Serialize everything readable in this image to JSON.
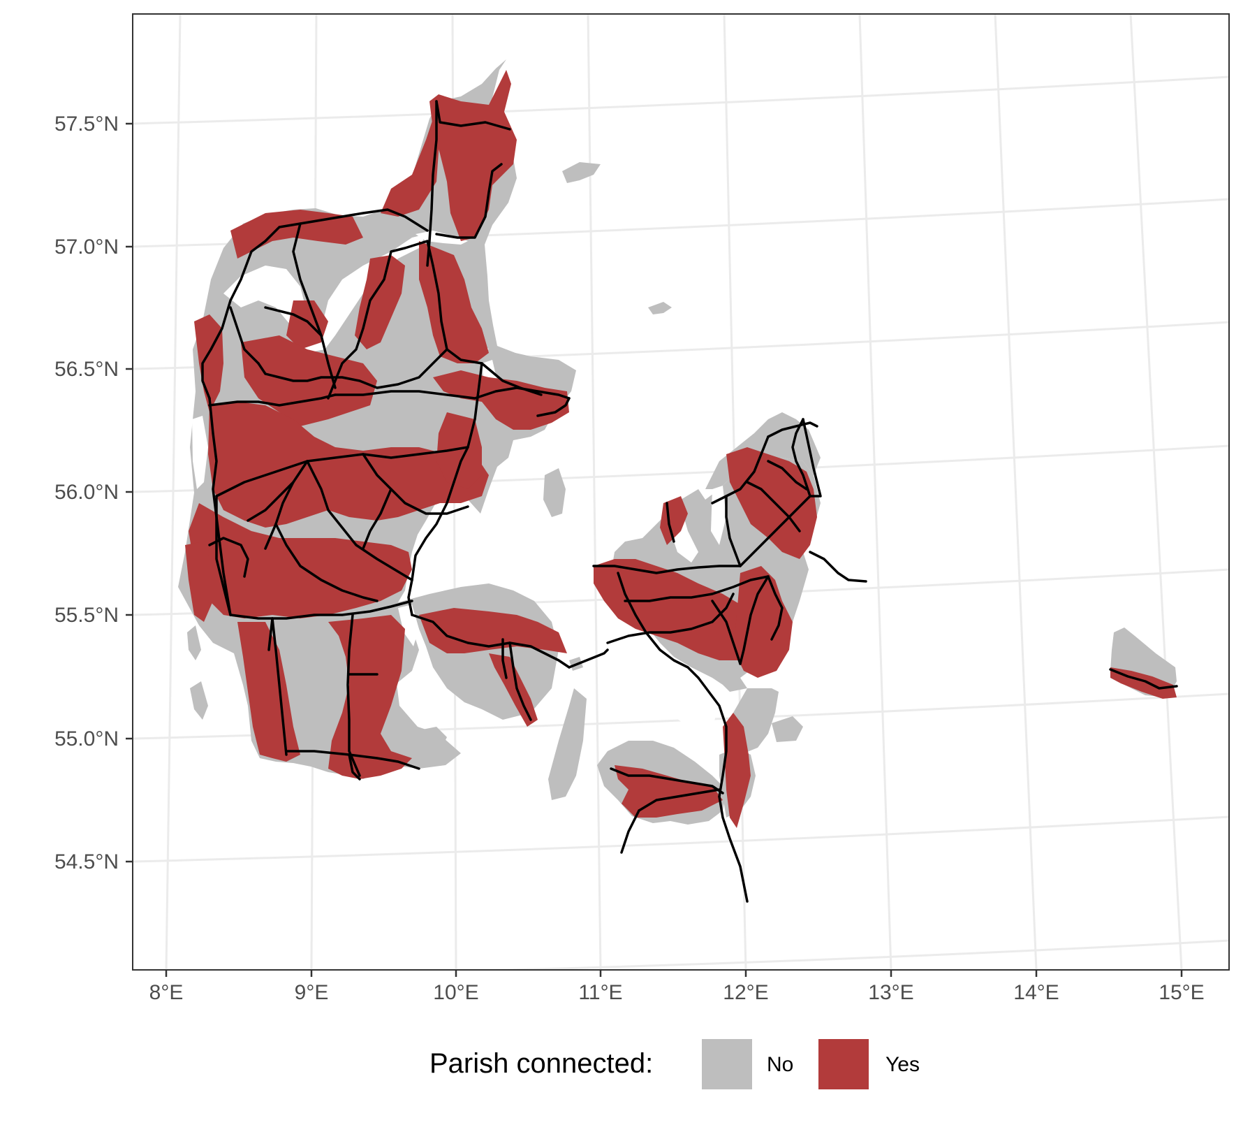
{
  "map": {
    "projection": "conic, graticule curved",
    "background": "#ffffff",
    "grid_color": "#ebebeb",
    "panel_border_color": "#333333",
    "axes": {
      "lon_ticks": [
        "8°E",
        "9°E",
        "10°E",
        "11°E",
        "12°E",
        "13°E",
        "14°E",
        "15°E"
      ],
      "lat_ticks": [
        "57.5°N",
        "57.0°N",
        "56.5°N",
        "56.0°N",
        "55.5°N",
        "55.0°N",
        "54.5°N"
      ]
    },
    "colors": {
      "not_connected": "#bebebe",
      "connected": "#b23b3b",
      "rail": "#000000"
    },
    "legend": {
      "title": "Parish connected:",
      "position": "bottom",
      "items": [
        {
          "label": "No",
          "color": "#bebebe"
        },
        {
          "label": "Yes",
          "color": "#b23b3b"
        }
      ]
    }
  }
}
